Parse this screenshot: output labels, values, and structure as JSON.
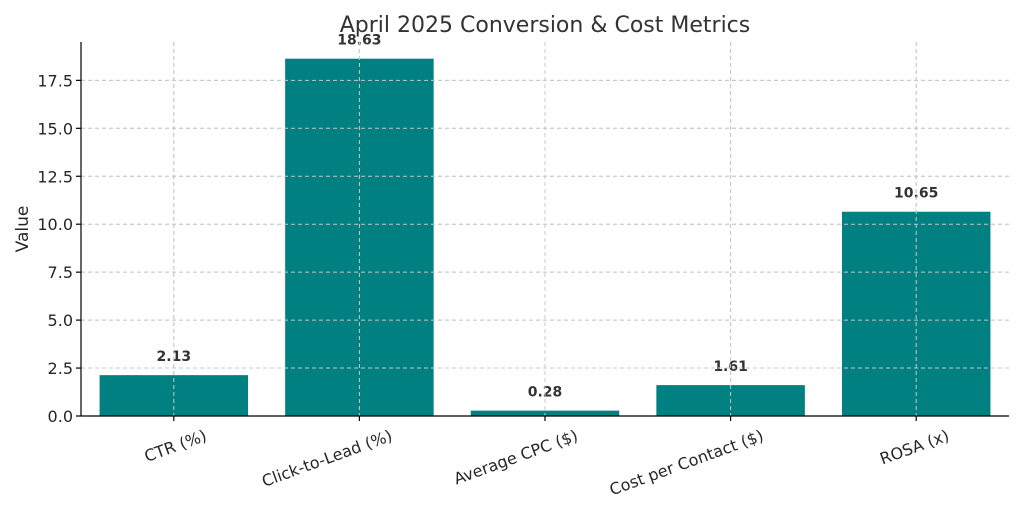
{
  "chart_data": {
    "type": "bar",
    "title": "April 2025 Conversion & Cost Metrics",
    "xlabel": "",
    "ylabel": "Value",
    "categories": [
      "CTR (%)",
      "Click-to-Lead (%)",
      "Average CPC ($)",
      "Cost per Contact ($)",
      "ROSA (x)"
    ],
    "values": [
      2.13,
      18.63,
      0.28,
      1.61,
      10.65
    ],
    "value_labels": [
      "2.13",
      "18.63",
      "0.28",
      "1.61",
      "10.65"
    ],
    "ylim": [
      0,
      19.5
    ],
    "yticks": [
      0,
      2.5,
      5,
      7.5,
      10,
      12.5,
      15,
      17.5
    ],
    "ytick_labels": [
      "0.0",
      "2.5",
      "5.0",
      "7.5",
      "10.0",
      "12.5",
      "15.0",
      "17.5"
    ],
    "grid": true,
    "bar_color": "#008080"
  }
}
